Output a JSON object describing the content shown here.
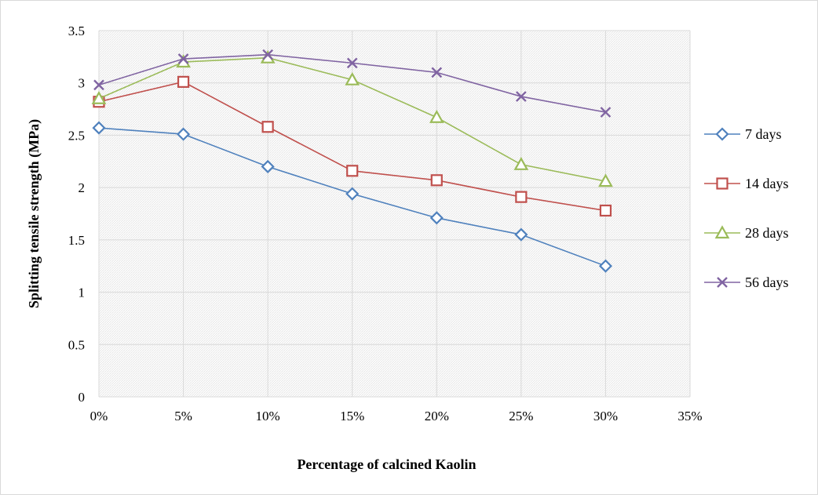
{
  "chart_data": {
    "type": "line",
    "title": "",
    "xlabel": "Percentage of calcined Kaolin",
    "ylabel": "Splitting tensile strength (MPa)",
    "x_ticks": [
      "0%",
      "5%",
      "10%",
      "15%",
      "20%",
      "25%",
      "30%",
      "35%"
    ],
    "y_ticks": [
      "0",
      "0.5",
      "1",
      "1.5",
      "2",
      "2.5",
      "3",
      "3.5"
    ],
    "xlim": [
      0,
      35
    ],
    "ylim": [
      0,
      3.5
    ],
    "grid": true,
    "legend_position": "right",
    "x": [
      0,
      5,
      10,
      15,
      20,
      25,
      30
    ],
    "series": [
      {
        "name": "7 days",
        "color": "#4f81bd",
        "marker": "diamond",
        "values": [
          2.57,
          2.51,
          2.2,
          1.94,
          1.71,
          1.55,
          1.25
        ]
      },
      {
        "name": "14 days",
        "color": "#c0504d",
        "marker": "square",
        "values": [
          2.82,
          3.01,
          2.58,
          2.16,
          2.07,
          1.91,
          1.78
        ]
      },
      {
        "name": "28 days",
        "color": "#9bbb59",
        "marker": "triangle",
        "values": [
          2.85,
          3.2,
          3.24,
          3.03,
          2.67,
          2.22,
          2.06
        ]
      },
      {
        "name": "56 days",
        "color": "#8064a2",
        "marker": "x",
        "values": [
          2.98,
          3.23,
          3.27,
          3.19,
          3.1,
          2.87,
          2.72
        ]
      }
    ]
  }
}
